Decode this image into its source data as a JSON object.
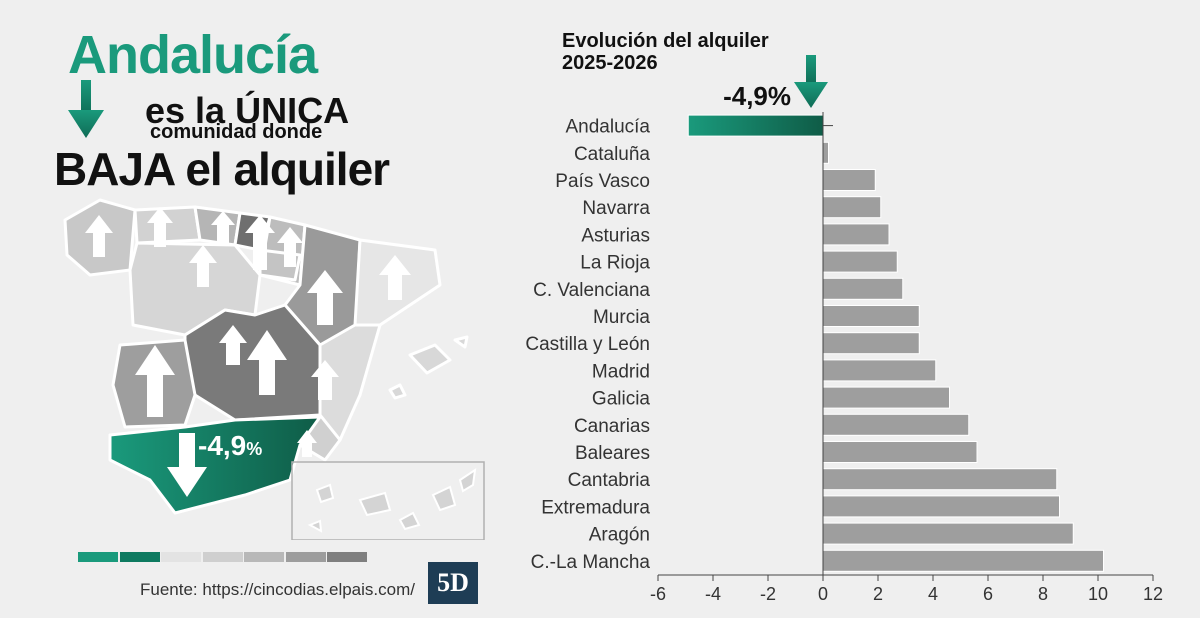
{
  "headline": {
    "region": "Andalucía",
    "line2": "es la ÚNICA",
    "line3": "comunidad donde",
    "line4": "BAJA el alquiler"
  },
  "map": {
    "label_value": "-4,9",
    "label_unit": "%"
  },
  "source": "Fuente: https://cincodias.elpais.com/",
  "logo": "5D",
  "legend_colors": [
    "#1a9a7c",
    "#0e7a60",
    "#e3e3e3",
    "#cfcfcf",
    "#b8b8b8",
    "#9d9d9d",
    "#7f7f7f"
  ],
  "colors": {
    "accent": "#1a9a7c",
    "accent_dark": "#0f5c47",
    "bar": "#9e9e9e",
    "bar_stroke": "#ffffff"
  },
  "chart_data": {
    "type": "bar",
    "orientation": "horizontal",
    "title": "Evolución del alquiler",
    "subtitle": "2025-2026",
    "annotation": "-4,9%",
    "categories": [
      "Andalucía",
      "Cataluña",
      "País Vasco",
      "Navarra",
      "Asturias",
      "La Rioja",
      "C. Valenciana",
      "Murcia",
      "Castilla y León",
      "Madrid",
      "Galicia",
      "Canarias",
      "Baleares",
      "Cantabria",
      "Extremadura",
      "Aragón",
      "C.-La Mancha"
    ],
    "values": [
      -4.9,
      0.2,
      1.9,
      2.1,
      2.4,
      2.7,
      2.9,
      3.5,
      3.5,
      4.1,
      4.6,
      5.3,
      5.6,
      8.5,
      8.6,
      9.1,
      10.2
    ],
    "xlim": [
      -6,
      12
    ],
    "xticks": [
      "-6",
      "-4",
      "-2",
      "0",
      "2",
      "4",
      "6",
      "8",
      "10",
      "12"
    ],
    "xtick_values": [
      -6,
      -4,
      -2,
      0,
      2,
      4,
      6,
      8,
      10,
      12
    ],
    "grid": false
  }
}
